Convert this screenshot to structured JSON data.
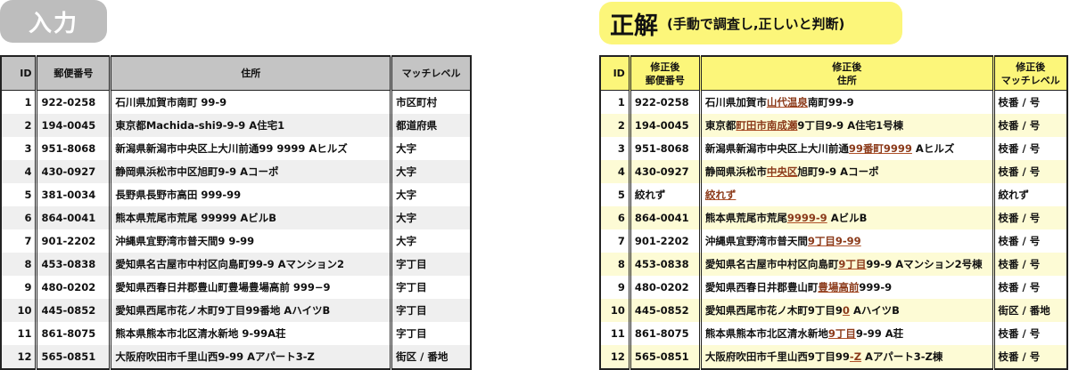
{
  "input_badge": "入力",
  "answer_badge": {
    "title": "正解",
    "subtitle": "(手動で調査し,正しいと判断)"
  },
  "colors": {
    "input_header": "#c4c4c4",
    "answer_header": "#fcf67a",
    "highlight": "#8b3a1a"
  },
  "input_table": {
    "headers": [
      "ID",
      "郵便番号",
      "住所",
      "マッチレベル"
    ],
    "rows": [
      [
        "1",
        "922-0258",
        "石川県加賀市南町 99-9",
        "市区町村"
      ],
      [
        "2",
        "194-0045",
        "東京都Machida-shi9-9-9 A住宅1",
        "都道府県"
      ],
      [
        "3",
        "951-8068",
        "新潟県新潟市中央区上大川前通99 9999 Aヒルズ",
        "大字"
      ],
      [
        "4",
        "430-0927",
        "静岡県浜松市中区旭町9-9 Aコーポ",
        "大字"
      ],
      [
        "5",
        "381-0034",
        "長野県長野市高田 999-99",
        "大字"
      ],
      [
        "6",
        "864-0041",
        "熊本県荒尾市荒尾 99999 AビルB",
        "大字"
      ],
      [
        "7",
        "901-2202",
        "沖縄県宜野湾市普天間9 9-99",
        "大字"
      ],
      [
        "8",
        "453-0838",
        "愛知県名古屋市中村区向島町99-9 Aマンション2",
        "字丁目"
      ],
      [
        "9",
        "480-0202",
        "愛知県西春日井郡豊山町豊場豊場高前 999−9",
        "字丁目"
      ],
      [
        "10",
        "445-0852",
        "愛知県西尾市花ノ木町9丁目99番地 AハイツB",
        "字丁目"
      ],
      [
        "11",
        "861-8075",
        "熊本県熊本市北区清水新地 9-99A荘",
        "字丁目"
      ],
      [
        "12",
        "565-0851",
        "大阪府吹田市千里山西9-99 Aアパート3-Z",
        "街区 / 番地"
      ]
    ]
  },
  "answer_table": {
    "headers": [
      "ID",
      "修正後\n郵便番号",
      "修正後\n住所",
      "修正後\nマッチレベル"
    ],
    "rows": [
      {
        "id": "1",
        "zip": "922-0258",
        "addr": [
          [
            "石川県加賀市",
            0
          ],
          [
            "山代温泉",
            1
          ],
          [
            "南町99-9",
            0
          ]
        ],
        "level": "枝番 / 号"
      },
      {
        "id": "2",
        "zip": "194-0045",
        "addr": [
          [
            "東京都",
            0
          ],
          [
            "町田市南成瀬",
            1
          ],
          [
            "9丁目9-9 A住宅1号棟",
            0
          ]
        ],
        "level": "枝番 / 号"
      },
      {
        "id": "3",
        "zip": "951-8068",
        "addr": [
          [
            "新潟県新潟市中央区上大川前通",
            0
          ],
          [
            "99番町9999",
            1
          ],
          [
            " Aヒルズ",
            0
          ]
        ],
        "level": "枝番 / 号"
      },
      {
        "id": "4",
        "zip": "430-0927",
        "addr": [
          [
            "静岡県浜松市",
            0
          ],
          [
            "中央区",
            1
          ],
          [
            "旭町9-9 Aコーポ",
            0
          ]
        ],
        "level": "枝番 / 号"
      },
      {
        "id": "5",
        "zip": "絞れず",
        "addr": [
          [
            "絞れず",
            1
          ]
        ],
        "level": "絞れず"
      },
      {
        "id": "6",
        "zip": "864-0041",
        "addr": [
          [
            "熊本県荒尾市荒尾",
            0
          ],
          [
            "9999-9",
            1
          ],
          [
            " AビルB",
            0
          ]
        ],
        "level": "枝番 / 号"
      },
      {
        "id": "7",
        "zip": "901-2202",
        "addr": [
          [
            "沖縄県宜野湾市普天間",
            0
          ],
          [
            "9丁目9-99",
            1
          ]
        ],
        "level": "枝番 / 号"
      },
      {
        "id": "8",
        "zip": "453-0838",
        "addr": [
          [
            "愛知県名古屋市中村区向島町",
            0
          ],
          [
            "9丁目",
            1
          ],
          [
            "99-9 Aマンション2号棟",
            0
          ]
        ],
        "level": "枝番 / 号"
      },
      {
        "id": "9",
        "zip": "480-0202",
        "addr": [
          [
            "愛知県西春日井郡豊山町",
            0
          ],
          [
            "豊場高前",
            1
          ],
          [
            "999-9",
            0
          ]
        ],
        "level": "枝番 / 号"
      },
      {
        "id": "10",
        "zip": "445-0852",
        "addr": [
          [
            "愛知県西尾市花ノ木町9丁目9",
            0
          ],
          [
            "0",
            1
          ],
          [
            " AハイツB",
            0
          ]
        ],
        "level": "街区 / 番地"
      },
      {
        "id": "11",
        "zip": "861-8075",
        "addr": [
          [
            "熊本県熊本市北区清水新地",
            0
          ],
          [
            "9丁目",
            1
          ],
          [
            "9-99 A荘",
            0
          ]
        ],
        "level": "枝番 / 号"
      },
      {
        "id": "12",
        "zip": "565-0851",
        "addr": [
          [
            "大阪府吹田市千里山西9丁目99",
            0
          ],
          [
            "-Z",
            1
          ],
          [
            " Aアパート3-Z棟",
            0
          ]
        ],
        "level": "枝番 / 号"
      }
    ]
  }
}
